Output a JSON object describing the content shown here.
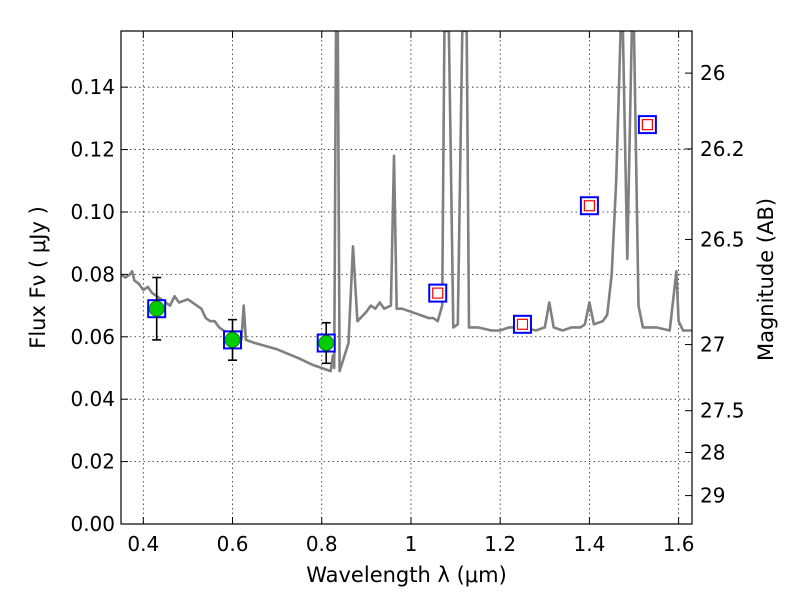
{
  "chart_data": {
    "type": "scatter",
    "title": "",
    "xlabel": "Wavelength  λ (μm)",
    "ylabel": "Flux  Fν ( μJy )",
    "ylabel_right": "Magnitude (AB)",
    "xlim": [
      0.35,
      1.63
    ],
    "ylim": [
      0.0,
      0.158
    ],
    "grid": true,
    "x_ticks": [
      0.4,
      0.6,
      0.8,
      1.0,
      1.2,
      1.4,
      1.6
    ],
    "x_tick_labels": [
      "0.4",
      "0.6",
      "0.8",
      "1",
      "1.2",
      "1.4",
      "1.6"
    ],
    "y_ticks": [
      0.0,
      0.02,
      0.04,
      0.06,
      0.08,
      0.1,
      0.12,
      0.14
    ],
    "y_tick_labels": [
      "0.00",
      "0.02",
      "0.04",
      "0.06",
      "0.08",
      "0.10",
      "0.12",
      "0.14"
    ],
    "right_ticks": [
      {
        "label": "26",
        "flux": 0.1445
      },
      {
        "label": "26.2",
        "flux": 0.1202
      },
      {
        "label": "26.5",
        "flux": 0.0912
      },
      {
        "label": "27",
        "flux": 0.0575
      },
      {
        "label": "27.5",
        "flux": 0.0363
      },
      {
        "label": "28",
        "flux": 0.0229
      },
      {
        "label": "29",
        "flux": 0.0091
      }
    ],
    "colors": {
      "sed": "#808080",
      "observed_fill": "#00cc00",
      "model_box": "#0000ff",
      "model_inner": "#ff0000",
      "errorbar": "#000000"
    },
    "series": [
      {
        "values": [
          [
            0.35,
            0.08
          ],
          [
            0.36,
            0.079
          ],
          [
            0.37,
            0.08
          ],
          [
            0.375,
            0.081
          ],
          [
            0.38,
            0.078
          ],
          [
            0.39,
            0.077
          ],
          [
            0.4,
            0.075
          ],
          [
            0.41,
            0.076
          ],
          [
            0.42,
            0.074
          ],
          [
            0.43,
            0.073
          ],
          [
            0.44,
            0.072
          ],
          [
            0.45,
            0.071
          ],
          [
            0.46,
            0.07
          ],
          [
            0.47,
            0.073
          ],
          [
            0.48,
            0.071
          ],
          [
            0.5,
            0.072
          ],
          [
            0.52,
            0.07
          ],
          [
            0.53,
            0.069
          ],
          [
            0.54,
            0.066
          ],
          [
            0.55,
            0.065
          ],
          [
            0.56,
            0.065
          ],
          [
            0.57,
            0.063
          ],
          [
            0.58,
            0.062
          ],
          [
            0.59,
            0.061
          ],
          [
            0.6,
            0.06
          ],
          [
            0.61,
            0.059
          ],
          [
            0.615,
            0.06
          ],
          [
            0.62,
            0.059
          ],
          [
            0.625,
            0.07
          ],
          [
            0.63,
            0.059
          ],
          [
            0.65,
            0.058
          ],
          [
            0.7,
            0.056
          ],
          [
            0.75,
            0.053
          ],
          [
            0.78,
            0.051
          ],
          [
            0.8,
            0.05
          ],
          [
            0.82,
            0.049
          ],
          [
            0.825,
            0.054
          ],
          [
            0.828,
            0.05
          ],
          [
            0.832,
            0.158
          ],
          [
            0.836,
            0.158
          ],
          [
            0.84,
            0.049
          ],
          [
            0.86,
            0.058
          ],
          [
            0.87,
            0.089
          ],
          [
            0.88,
            0.065
          ],
          [
            0.9,
            0.068
          ],
          [
            0.91,
            0.07
          ],
          [
            0.92,
            0.069
          ],
          [
            0.93,
            0.071
          ],
          [
            0.94,
            0.069
          ],
          [
            0.955,
            0.07
          ],
          [
            0.962,
            0.118
          ],
          [
            0.968,
            0.069
          ],
          [
            0.98,
            0.069
          ],
          [
            1.0,
            0.068
          ],
          [
            1.02,
            0.067
          ],
          [
            1.04,
            0.066
          ],
          [
            1.05,
            0.066
          ],
          [
            1.06,
            0.065
          ],
          [
            1.07,
            0.07
          ],
          [
            1.075,
            0.158
          ],
          [
            1.085,
            0.158
          ],
          [
            1.095,
            0.063
          ],
          [
            1.105,
            0.064
          ],
          [
            1.115,
            0.158
          ],
          [
            1.125,
            0.158
          ],
          [
            1.13,
            0.063
          ],
          [
            1.15,
            0.063
          ],
          [
            1.18,
            0.062
          ],
          [
            1.2,
            0.062
          ],
          [
            1.22,
            0.063
          ],
          [
            1.25,
            0.063
          ],
          [
            1.28,
            0.062
          ],
          [
            1.3,
            0.063
          ],
          [
            1.31,
            0.071
          ],
          [
            1.32,
            0.063
          ],
          [
            1.34,
            0.062
          ],
          [
            1.36,
            0.063
          ],
          [
            1.38,
            0.063
          ],
          [
            1.39,
            0.064
          ],
          [
            1.4,
            0.071
          ],
          [
            1.41,
            0.064
          ],
          [
            1.43,
            0.065
          ],
          [
            1.44,
            0.067
          ],
          [
            1.45,
            0.08
          ],
          [
            1.46,
            0.11
          ],
          [
            1.47,
            0.158
          ],
          [
            1.475,
            0.158
          ],
          [
            1.485,
            0.085
          ],
          [
            1.495,
            0.158
          ],
          [
            1.5,
            0.158
          ],
          [
            1.51,
            0.07
          ],
          [
            1.52,
            0.063
          ],
          [
            1.55,
            0.063
          ],
          [
            1.58,
            0.062
          ],
          [
            1.595,
            0.081
          ],
          [
            1.6,
            0.065
          ],
          [
            1.61,
            0.062
          ],
          [
            1.63,
            0.062
          ]
        ]
      },
      {
        "points": [
          {
            "x": 0.43,
            "y": 0.069,
            "yerr": 0.01
          },
          {
            "x": 0.6,
            "y": 0.059,
            "yerr": 0.0065
          },
          {
            "x": 0.81,
            "y": 0.058,
            "yerr": 0.0065
          }
        ]
      },
      {
        "points": [
          {
            "x": 0.43,
            "y": 0.069
          },
          {
            "x": 0.6,
            "y": 0.059
          },
          {
            "x": 0.81,
            "y": 0.058
          },
          {
            "x": 1.06,
            "y": 0.074
          },
          {
            "x": 1.25,
            "y": 0.064
          },
          {
            "x": 1.4,
            "y": 0.102
          },
          {
            "x": 1.53,
            "y": 0.128
          }
        ]
      }
    ]
  }
}
